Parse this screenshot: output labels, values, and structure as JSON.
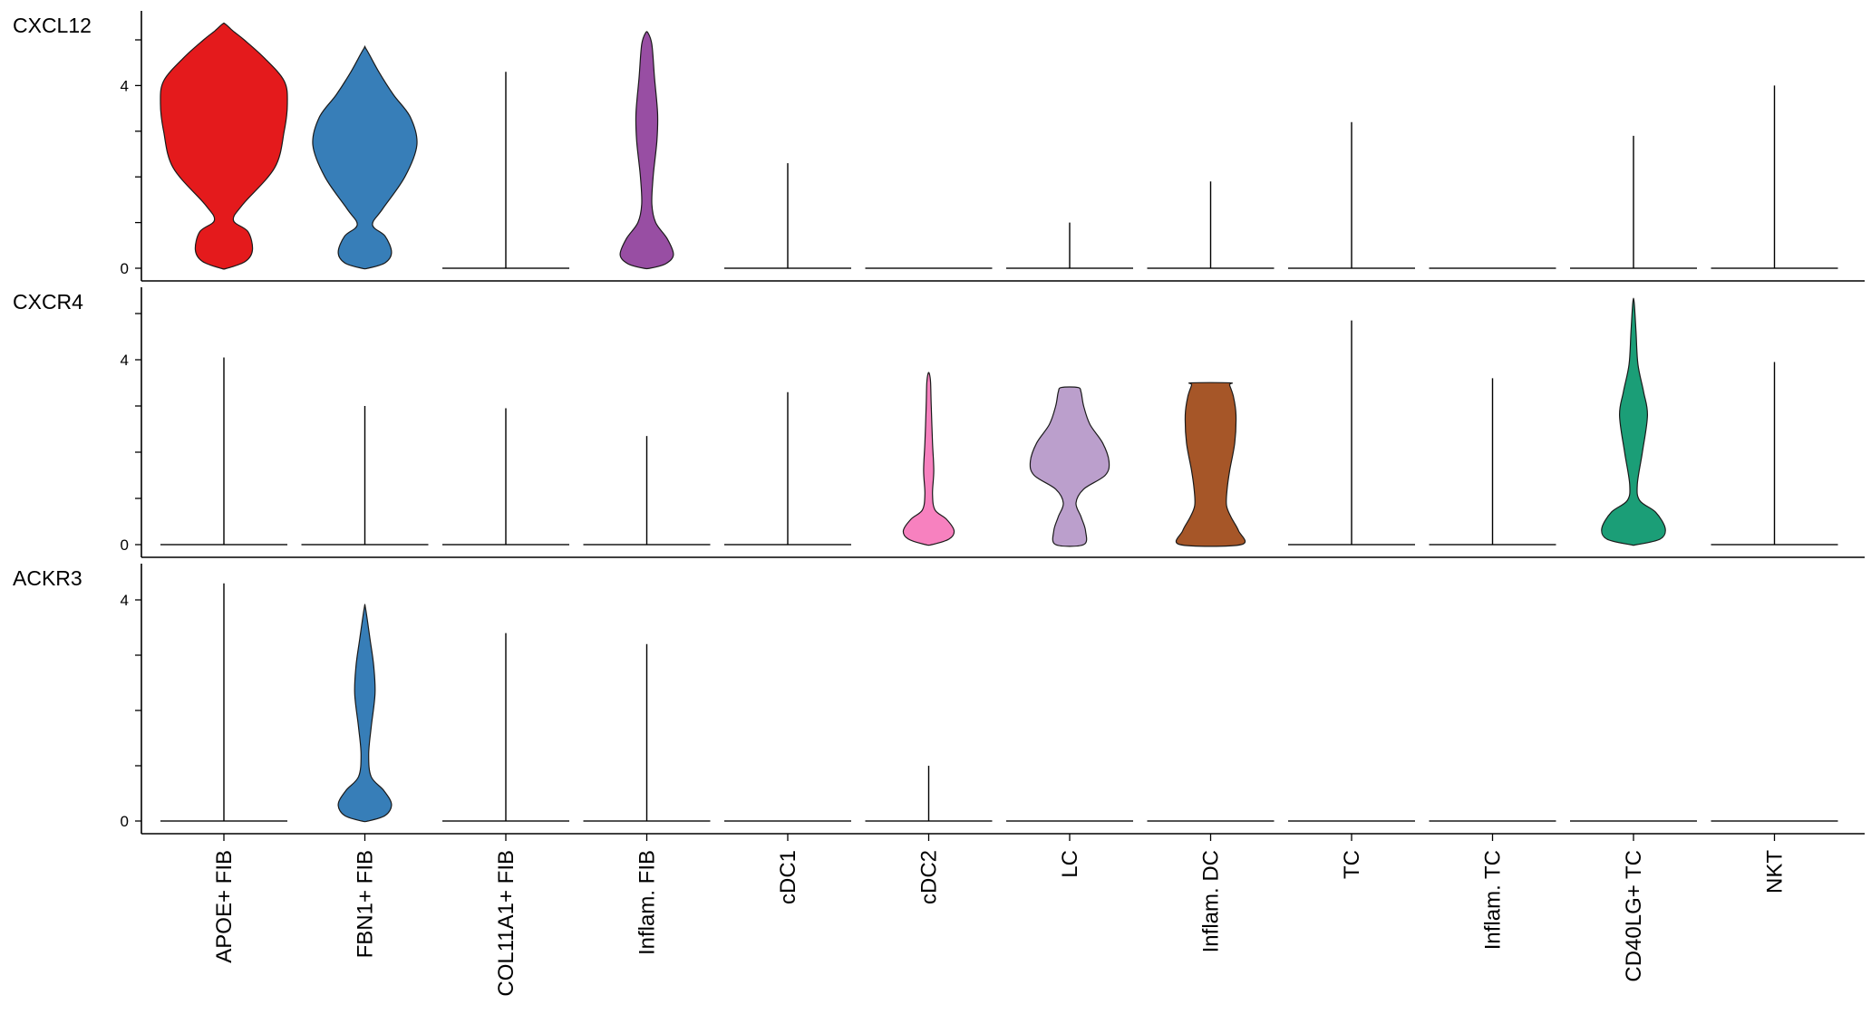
{
  "chart_data": {
    "type": "violin",
    "categories": [
      "APOE+ FIB",
      "FBN1+ FIB",
      "COL11A1+ FIB",
      "Inflam. FIB",
      "cDC1",
      "cDC2",
      "LC",
      "Inflam. DC",
      "TC",
      "Inflam. TC",
      "CD40LG+ TC",
      "NKT"
    ],
    "colors": [
      "#e41a1c",
      "#377eb8",
      "#377eb8",
      "#984ea3",
      "#ff7f00",
      "#f781bf",
      "#bb9fcc",
      "#a65628",
      "#999999",
      "#e7298a",
      "#1b9e77",
      "#66a61e"
    ],
    "yticks": [
      0,
      4
    ],
    "panels": [
      {
        "gene": "CXCL12",
        "ylim": [
          0,
          5.35
        ],
        "series": [
          {
            "category": "APOE+ FIB",
            "max": 5.35,
            "profile": [
              [
                0,
                0.05
              ],
              [
                0.15,
                0.34
              ],
              [
                0.4,
                0.45
              ],
              [
                0.8,
                0.38
              ],
              [
                1.05,
                0.15
              ],
              [
                1.4,
                0.3
              ],
              [
                2.2,
                0.8
              ],
              [
                3.0,
                0.95
              ],
              [
                3.6,
                1.0
              ],
              [
                4.1,
                0.95
              ],
              [
                4.6,
                0.64
              ],
              [
                5.0,
                0.32
              ],
              [
                5.2,
                0.14
              ],
              [
                5.35,
                0.02
              ]
            ]
          },
          {
            "category": "FBN1+ FIB",
            "max": 4.8,
            "profile": [
              [
                0,
                0.05
              ],
              [
                0.12,
                0.32
              ],
              [
                0.35,
                0.42
              ],
              [
                0.7,
                0.32
              ],
              [
                0.95,
                0.12
              ],
              [
                1.3,
                0.28
              ],
              [
                2.0,
                0.63
              ],
              [
                2.7,
                0.82
              ],
              [
                3.3,
                0.72
              ],
              [
                3.8,
                0.45
              ],
              [
                4.3,
                0.22
              ],
              [
                4.8,
                0.02
              ]
            ]
          },
          {
            "category": "COL11A1+ FIB",
            "max": 4.3,
            "profile": null
          },
          {
            "category": "Inflam. FIB",
            "max": 5.15,
            "profile": [
              [
                0,
                0.05
              ],
              [
                0.1,
                0.3
              ],
              [
                0.3,
                0.42
              ],
              [
                0.65,
                0.32
              ],
              [
                1.0,
                0.14
              ],
              [
                1.4,
                0.08
              ],
              [
                2.0,
                0.1
              ],
              [
                2.8,
                0.16
              ],
              [
                3.4,
                0.17
              ],
              [
                4.2,
                0.12
              ],
              [
                4.9,
                0.08
              ],
              [
                5.15,
                0.02
              ]
            ]
          },
          {
            "category": "cDC1",
            "max": 2.3,
            "profile": null
          },
          {
            "category": "cDC2",
            "max": 0,
            "profile": null
          },
          {
            "category": "LC",
            "max": 1.0,
            "profile": null
          },
          {
            "category": "Inflam. DC",
            "max": 1.9,
            "profile": null
          },
          {
            "category": "TC",
            "max": 3.2,
            "profile": null
          },
          {
            "category": "Inflam. TC",
            "max": 0,
            "profile": null
          },
          {
            "category": "CD40LG+ TC",
            "max": 2.9,
            "profile": null
          },
          {
            "category": "NKT",
            "max": 4.0,
            "profile": null
          }
        ]
      },
      {
        "gene": "CXCR4",
        "ylim": [
          0,
          5.2
        ],
        "series": [
          {
            "category": "APOE+ FIB",
            "max": 4.05,
            "profile": null
          },
          {
            "category": "FBN1+ FIB",
            "max": 3.0,
            "profile": null
          },
          {
            "category": "COL11A1+ FIB",
            "max": 2.95,
            "profile": null
          },
          {
            "category": "Inflam. FIB",
            "max": 2.35,
            "profile": null
          },
          {
            "category": "cDC1",
            "max": 3.3,
            "profile": null
          },
          {
            "category": "cDC2",
            "max": 3.7,
            "profile": [
              [
                0,
                0.05
              ],
              [
                0.12,
                0.32
              ],
              [
                0.3,
                0.4
              ],
              [
                0.55,
                0.28
              ],
              [
                0.75,
                0.1
              ],
              [
                1.1,
                0.06
              ],
              [
                1.6,
                0.08
              ],
              [
                2.2,
                0.06
              ],
              [
                3.0,
                0.04
              ],
              [
                3.5,
                0.03
              ],
              [
                3.7,
                0.01
              ]
            ]
          },
          {
            "category": "LC",
            "max": 3.4,
            "profile": [
              [
                0,
                0.22
              ],
              [
                0.3,
                0.25
              ],
              [
                0.6,
                0.18
              ],
              [
                0.9,
                0.1
              ],
              [
                1.2,
                0.22
              ],
              [
                1.5,
                0.56
              ],
              [
                1.8,
                0.62
              ],
              [
                2.2,
                0.52
              ],
              [
                2.6,
                0.32
              ],
              [
                3.0,
                0.22
              ],
              [
                3.3,
                0.18
              ],
              [
                3.4,
                0.13
              ]
            ]
          },
          {
            "category": "Inflam. DC",
            "max": 3.5,
            "profile": [
              [
                0,
                0.48
              ],
              [
                0.3,
                0.44
              ],
              [
                0.6,
                0.32
              ],
              [
                0.85,
                0.25
              ],
              [
                1.2,
                0.26
              ],
              [
                1.6,
                0.3
              ],
              [
                2.2,
                0.38
              ],
              [
                2.8,
                0.4
              ],
              [
                3.2,
                0.36
              ],
              [
                3.45,
                0.3
              ],
              [
                3.5,
                0.3
              ]
            ]
          },
          {
            "category": "TC",
            "max": 4.85,
            "profile": null
          },
          {
            "category": "Inflam. TC",
            "max": 3.6,
            "profile": null
          },
          {
            "category": "CD40LG+ TC",
            "max": 5.25,
            "profile": [
              [
                0,
                0.05
              ],
              [
                0.12,
                0.42
              ],
              [
                0.35,
                0.5
              ],
              [
                0.7,
                0.35
              ],
              [
                0.95,
                0.1
              ],
              [
                1.3,
                0.06
              ],
              [
                2.0,
                0.14
              ],
              [
                2.8,
                0.22
              ],
              [
                3.3,
                0.16
              ],
              [
                3.9,
                0.07
              ],
              [
                4.6,
                0.04
              ],
              [
                5.25,
                0.01
              ]
            ]
          },
          {
            "category": "NKT",
            "max": 3.95,
            "profile": null
          }
        ]
      },
      {
        "gene": "ACKR3",
        "ylim": [
          0,
          4.3
        ],
        "series": [
          {
            "category": "APOE+ FIB",
            "max": 4.3,
            "profile": null
          },
          {
            "category": "FBN1+ FIB",
            "max": 3.85,
            "profile": [
              [
                0,
                0.05
              ],
              [
                0.1,
                0.32
              ],
              [
                0.3,
                0.42
              ],
              [
                0.55,
                0.3
              ],
              [
                0.8,
                0.1
              ],
              [
                1.2,
                0.06
              ],
              [
                1.7,
                0.1
              ],
              [
                2.3,
                0.16
              ],
              [
                2.8,
                0.14
              ],
              [
                3.3,
                0.08
              ],
              [
                3.85,
                0.01
              ]
            ]
          },
          {
            "category": "COL11A1+ FIB",
            "max": 3.4,
            "profile": null
          },
          {
            "category": "Inflam. FIB",
            "max": 3.2,
            "profile": null
          },
          {
            "category": "cDC1",
            "max": 0,
            "profile": null
          },
          {
            "category": "cDC2",
            "max": 1.0,
            "profile": null
          },
          {
            "category": "LC",
            "max": 0,
            "profile": null
          },
          {
            "category": "Inflam. DC",
            "max": 0,
            "profile": null
          },
          {
            "category": "TC",
            "max": 0,
            "profile": null
          },
          {
            "category": "Inflam. TC",
            "max": 0,
            "profile": null
          },
          {
            "category": "CD40LG+ TC",
            "max": 0,
            "profile": null
          },
          {
            "category": "NKT",
            "max": 0,
            "profile": null
          }
        ]
      }
    ]
  }
}
